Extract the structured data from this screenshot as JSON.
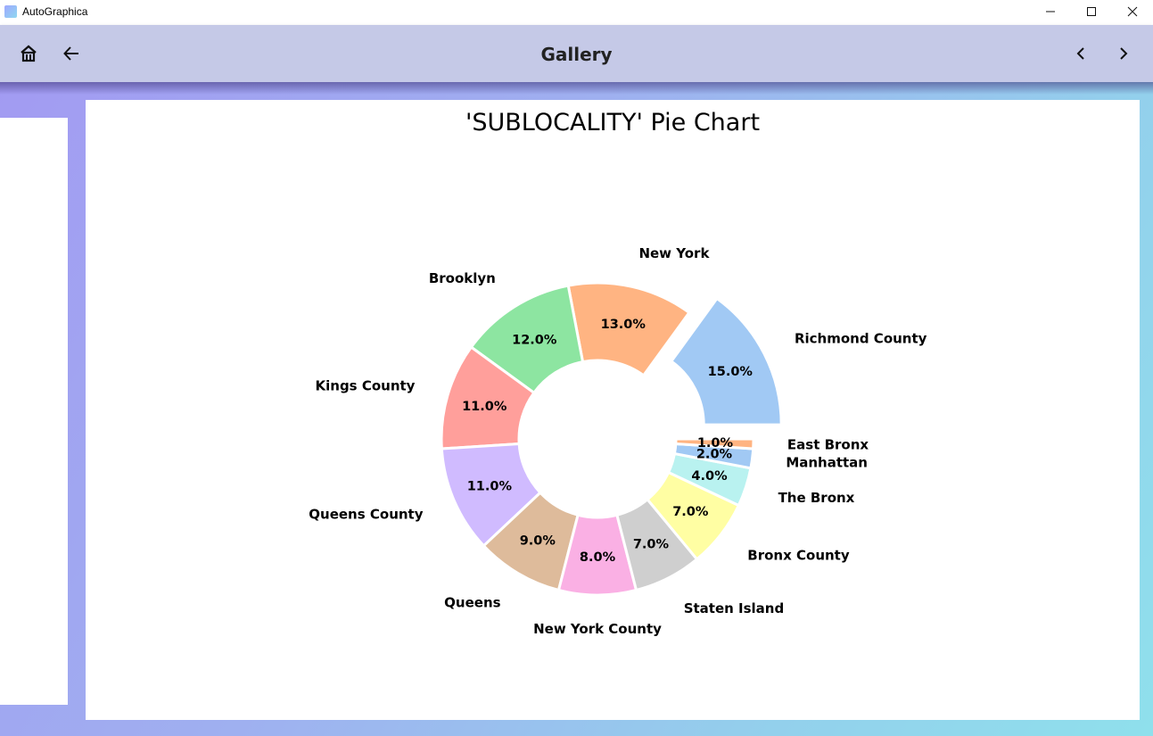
{
  "window": {
    "title": "AutoGraphica",
    "minimize": "—",
    "maximize": "☐",
    "close": "✕"
  },
  "appbar": {
    "title": "Gallery",
    "home_icon": "home-icon",
    "back_icon": "arrow-left-icon",
    "prev_icon": "chevron-left-icon",
    "next_icon": "chevron-right-icon"
  },
  "chart_data": {
    "type": "pie",
    "style": "donut",
    "title": "'SUBLOCALITY' Pie Chart",
    "slices": [
      {
        "label": "Richmond County",
        "value": 15.0,
        "pct_label": "15.0%",
        "color": "#a1c9f4",
        "explode": true
      },
      {
        "label": "New York",
        "value": 13.0,
        "pct_label": "13.0%",
        "color": "#ffb482",
        "explode": false
      },
      {
        "label": "Brooklyn",
        "value": 12.0,
        "pct_label": "12.0%",
        "color": "#8de5a1",
        "explode": false
      },
      {
        "label": "Kings County",
        "value": 11.0,
        "pct_label": "11.0%",
        "color": "#ff9f9b",
        "explode": false
      },
      {
        "label": "Queens County",
        "value": 11.0,
        "pct_label": "11.0%",
        "color": "#d0bbff",
        "explode": false
      },
      {
        "label": "Queens",
        "value": 9.0,
        "pct_label": "9.0%",
        "color": "#debb9b",
        "explode": false
      },
      {
        "label": "New York County",
        "value": 8.0,
        "pct_label": "8.0%",
        "color": "#fab0e4",
        "explode": false
      },
      {
        "label": "Staten Island",
        "value": 7.0,
        "pct_label": "7.0%",
        "color": "#cfcfcf",
        "explode": false
      },
      {
        "label": "Bronx County",
        "value": 7.0,
        "pct_label": "7.0%",
        "color": "#fffea3",
        "explode": false
      },
      {
        "label": "The Bronx",
        "value": 4.0,
        "pct_label": "4.0%",
        "color": "#b9f2f0",
        "explode": false
      },
      {
        "label": "Manhattan",
        "value": 2.0,
        "pct_label": "2.0%",
        "color": "#a1c9f4",
        "explode": false
      },
      {
        "label": "East Bronx",
        "value": 1.0,
        "pct_label": "1.0%",
        "color": "#ffb482",
        "explode": false
      }
    ]
  }
}
